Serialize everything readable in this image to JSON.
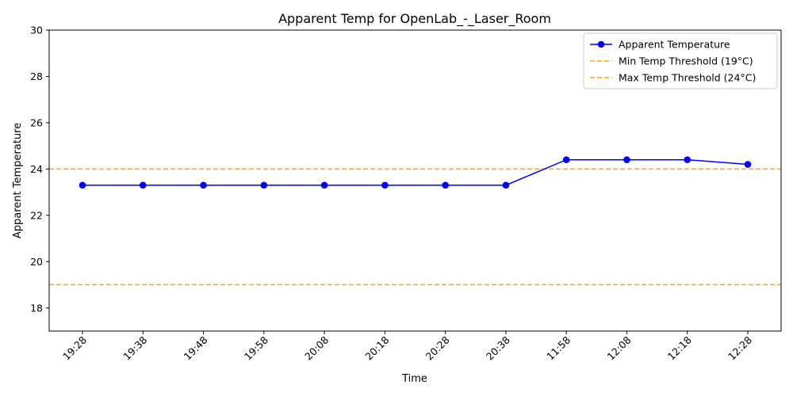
{
  "chart_data": {
    "type": "line",
    "title": "Apparent Temp for OpenLab_-_Laser_Room",
    "xlabel": "Time",
    "ylabel": "Apparent Temperature",
    "categories": [
      "19:28",
      "19:38",
      "19:48",
      "19:58",
      "20:08",
      "20:18",
      "20:28",
      "20:38",
      "11:58",
      "12:08",
      "12:18",
      "12:28"
    ],
    "series": [
      {
        "name": "Apparent Temperature",
        "values": [
          23.3,
          23.3,
          23.3,
          23.3,
          23.3,
          23.3,
          23.3,
          23.3,
          24.4,
          24.4,
          24.4,
          24.2
        ],
        "color": "#0000ff",
        "marker": "circle"
      }
    ],
    "thresholds": [
      {
        "name": "Min Temp Threshold (19°C)",
        "value": 19,
        "color": "#ffa500",
        "style": "dashed"
      },
      {
        "name": "Max Temp Threshold (24°C)",
        "value": 24,
        "color": "#ffa500",
        "style": "dashed"
      }
    ],
    "ylim": [
      17,
      30
    ],
    "yticks": [
      18,
      20,
      22,
      24,
      26,
      28,
      30
    ],
    "grid": false,
    "legend_position": "top-right",
    "xtick_rotation": 45
  }
}
